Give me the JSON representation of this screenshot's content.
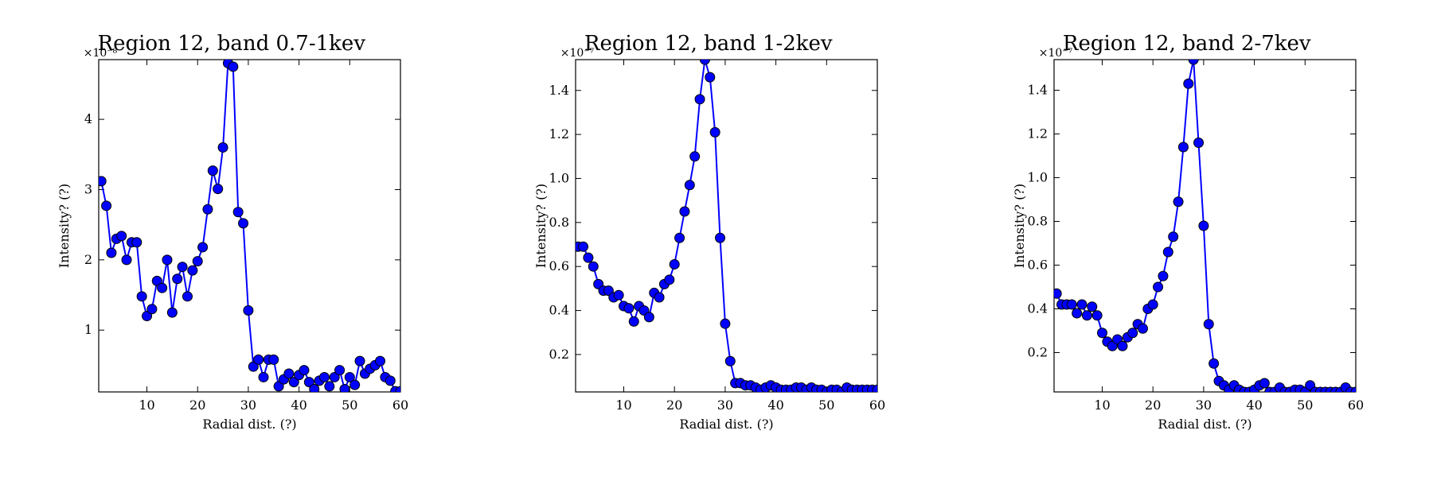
{
  "chart_data": [
    {
      "type": "line",
      "title": "Region 12, band 0.7-1kev",
      "xlabel": "Radial dist. (?)",
      "ylabel": "Intensity? (?)",
      "y_multiplier": "×10⁻⁸",
      "xlim": [
        0.5,
        60
      ],
      "ylim": [
        0.12,
        4.85
      ],
      "xticks": [
        10,
        20,
        30,
        40,
        50,
        60
      ],
      "yticks": [
        1,
        2,
        3,
        4
      ],
      "ytick_labels": [
        "1",
        "2",
        "3",
        "4"
      ],
      "x": [
        1,
        2,
        3,
        4,
        5,
        6,
        7,
        8,
        9,
        10,
        11,
        12,
        13,
        14,
        15,
        16,
        17,
        18,
        19,
        20,
        21,
        22,
        23,
        24,
        25,
        26,
        27,
        28,
        29,
        30,
        31,
        32,
        33,
        34,
        35,
        36,
        37,
        38,
        39,
        40,
        41,
        42,
        43,
        44,
        45,
        46,
        47,
        48,
        49,
        50,
        51,
        52,
        53,
        54,
        55,
        56,
        57,
        58,
        59,
        60
      ],
      "y": [
        3.12,
        2.77,
        2.1,
        2.3,
        2.34,
        2.0,
        2.25,
        2.25,
        1.48,
        1.2,
        1.3,
        1.7,
        1.6,
        2.0,
        1.25,
        1.73,
        1.9,
        1.48,
        1.85,
        1.98,
        2.18,
        2.72,
        3.27,
        3.01,
        3.6,
        4.8,
        4.75,
        2.68,
        2.52,
        1.28,
        0.48,
        0.58,
        0.33,
        0.58,
        0.58,
        0.2,
        0.3,
        0.38,
        0.26,
        0.36,
        0.43,
        0.26,
        0.16,
        0.28,
        0.33,
        0.2,
        0.33,
        0.43,
        0.16,
        0.33,
        0.22,
        0.56,
        0.38,
        0.45,
        0.5,
        0.56,
        0.33,
        0.28,
        0.13,
        0.13
      ],
      "color": "#0000ff"
    },
    {
      "type": "line",
      "title": "Region 12, band 1-2kev",
      "xlabel": "Radial dist. (?)",
      "ylabel": "Intensity? (?)",
      "y_multiplier": "×10⁻⁷",
      "xlim": [
        0.5,
        60
      ],
      "ylim": [
        0.03,
        1.54
      ],
      "xticks": [
        10,
        20,
        30,
        40,
        50,
        60
      ],
      "yticks": [
        0.2,
        0.4,
        0.6,
        0.8,
        1.0,
        1.2,
        1.4
      ],
      "ytick_labels": [
        "0.2",
        "0.4",
        "0.6",
        "0.8",
        "1.0",
        "1.2",
        "1.4"
      ],
      "x": [
        1,
        2,
        3,
        4,
        5,
        6,
        7,
        8,
        9,
        10,
        11,
        12,
        13,
        14,
        15,
        16,
        17,
        18,
        19,
        20,
        21,
        22,
        23,
        24,
        25,
        26,
        27,
        28,
        29,
        30,
        31,
        32,
        33,
        34,
        35,
        36,
        37,
        38,
        39,
        40,
        41,
        42,
        43,
        44,
        45,
        46,
        47,
        48,
        49,
        50,
        51,
        52,
        53,
        54,
        55,
        56,
        57,
        58,
        59,
        60
      ],
      "y": [
        0.69,
        0.69,
        0.64,
        0.6,
        0.52,
        0.49,
        0.49,
        0.46,
        0.47,
        0.42,
        0.41,
        0.35,
        0.42,
        0.4,
        0.37,
        0.48,
        0.46,
        0.52,
        0.54,
        0.61,
        0.73,
        0.85,
        0.97,
        1.1,
        1.36,
        1.54,
        1.46,
        1.21,
        0.73,
        0.34,
        0.17,
        0.07,
        0.07,
        0.06,
        0.06,
        0.05,
        0.04,
        0.05,
        0.06,
        0.05,
        0.04,
        0.04,
        0.04,
        0.05,
        0.05,
        0.04,
        0.05,
        0.04,
        0.04,
        0.03,
        0.04,
        0.04,
        0.03,
        0.05,
        0.04,
        0.04,
        0.04,
        0.04,
        0.04,
        0.04
      ],
      "color": "#0000ff"
    },
    {
      "type": "line",
      "title": "Region 12, band 2-7kev",
      "xlabel": "Radial dist. (?)",
      "ylabel": "Intensity? (?)",
      "y_multiplier": "×10⁻⁷",
      "xlim": [
        0.5,
        60
      ],
      "ylim": [
        0.02,
        1.54
      ],
      "xticks": [
        10,
        20,
        30,
        40,
        50,
        60
      ],
      "yticks": [
        0.2,
        0.4,
        0.6,
        0.8,
        1.0,
        1.2,
        1.4
      ],
      "ytick_labels": [
        "0.2",
        "0.4",
        "0.6",
        "0.8",
        "1.0",
        "1.2",
        "1.4"
      ],
      "x": [
        1,
        2,
        3,
        4,
        5,
        6,
        7,
        8,
        9,
        10,
        11,
        12,
        13,
        14,
        15,
        16,
        17,
        18,
        19,
        20,
        21,
        22,
        23,
        24,
        25,
        26,
        27,
        28,
        29,
        30,
        31,
        32,
        33,
        34,
        35,
        36,
        37,
        38,
        39,
        40,
        41,
        42,
        43,
        44,
        45,
        46,
        47,
        48,
        49,
        50,
        51,
        52,
        53,
        54,
        55,
        56,
        57,
        58,
        59,
        60
      ],
      "y": [
        0.47,
        0.42,
        0.42,
        0.42,
        0.38,
        0.42,
        0.37,
        0.41,
        0.37,
        0.29,
        0.25,
        0.23,
        0.26,
        0.23,
        0.27,
        0.29,
        0.33,
        0.31,
        0.4,
        0.42,
        0.5,
        0.55,
        0.66,
        0.73,
        0.89,
        1.14,
        1.43,
        1.54,
        1.16,
        0.78,
        0.33,
        0.15,
        0.07,
        0.05,
        0.03,
        0.05,
        0.03,
        0.02,
        0.02,
        0.03,
        0.05,
        0.06,
        0.02,
        0.02,
        0.04,
        0.02,
        0.02,
        0.03,
        0.03,
        0.02,
        0.05,
        0.02,
        0.02,
        0.02,
        0.02,
        0.02,
        0.02,
        0.04,
        0.02,
        0.02
      ],
      "color": "#0000ff"
    }
  ]
}
